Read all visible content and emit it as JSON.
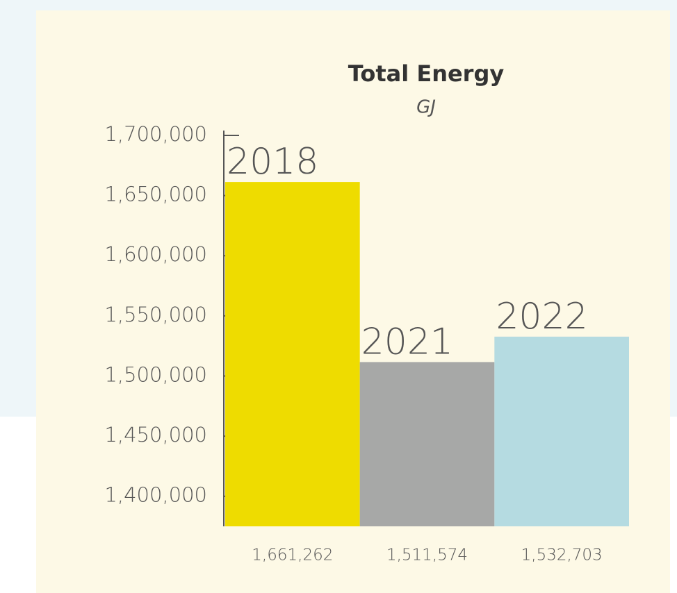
{
  "chart_data": {
    "type": "bar",
    "title": "Total Energy",
    "subtitle": "GJ",
    "categories": [
      "2018",
      "2021",
      "2022"
    ],
    "values": [
      1661262,
      1511574,
      1532703
    ],
    "value_labels": [
      "1,661,262",
      "1,511,574",
      "1,532,703"
    ],
    "colors": [
      "#eedc00",
      "#a7a8a7",
      "#b5dbe1"
    ],
    "ylim": [
      1375000,
      1700000
    ],
    "yticks": [
      {
        "value": 1400000,
        "label": "1,400,000"
      },
      {
        "value": 1450000,
        "label": "1,450,000"
      },
      {
        "value": 1500000,
        "label": "1,500,000"
      },
      {
        "value": 1550000,
        "label": "1,550,000"
      },
      {
        "value": 1600000,
        "label": "1,600,000"
      },
      {
        "value": 1650000,
        "label": "1,650,000"
      },
      {
        "value": 1700000,
        "label": "1,700,000"
      }
    ]
  }
}
